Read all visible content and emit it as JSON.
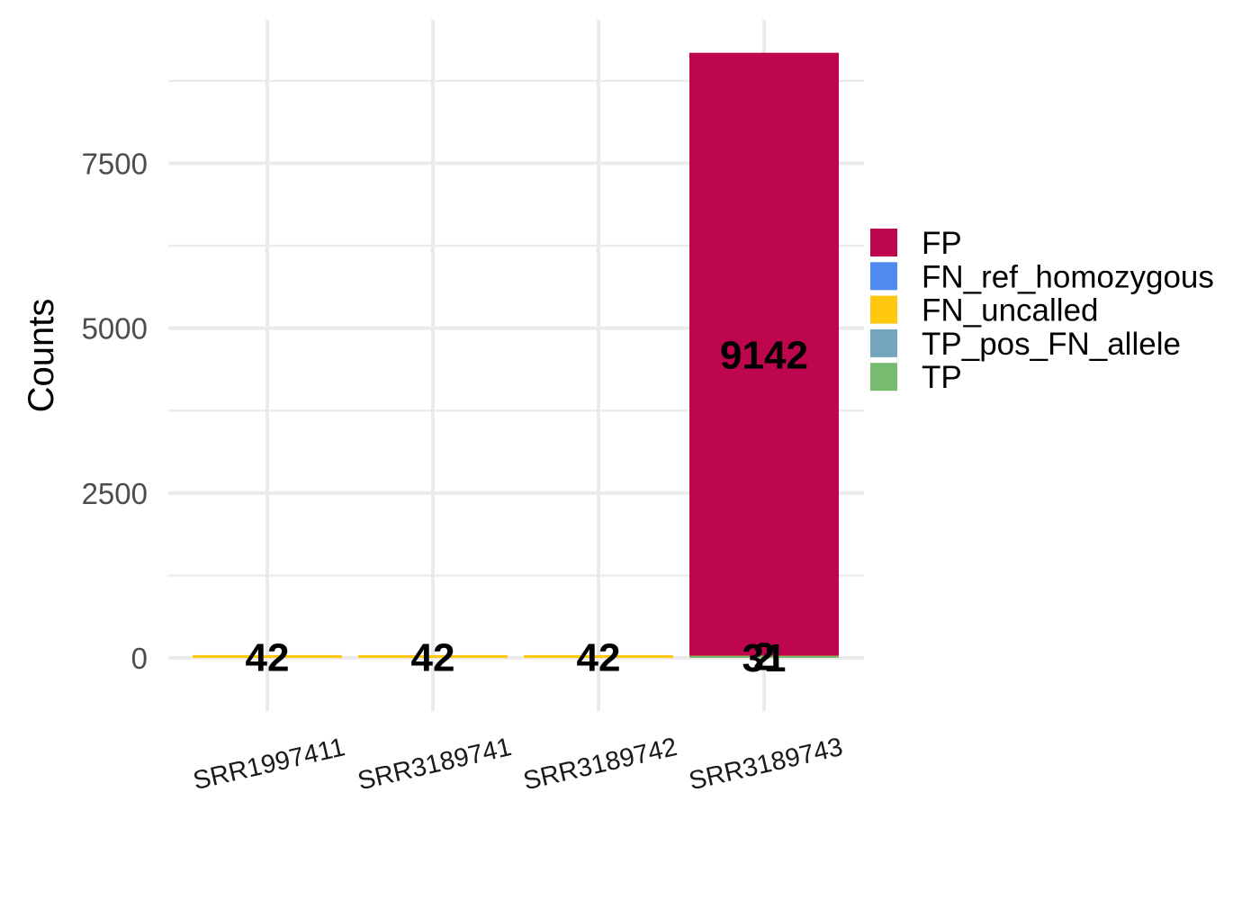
{
  "chart_data": {
    "type": "bar",
    "stacked": true,
    "title": "",
    "xlabel": "",
    "ylabel": "Counts",
    "ylim": [
      -650,
      9600
    ],
    "y_ticks": [
      0,
      2500,
      5000,
      7500
    ],
    "y_ticks_labels": [
      "0",
      "2500",
      "5000",
      "7500"
    ],
    "grid": true,
    "legend_position": "right",
    "categories": [
      "SRR1997411",
      "SRR3189741",
      "SRR3189742",
      "SRR3189743"
    ],
    "series": [
      {
        "name": "TP",
        "color": "#77BB6F",
        "values": [
          0,
          0,
          0,
          31
        ],
        "labels": [
          "",
          "",
          "",
          "31"
        ]
      },
      {
        "name": "TP_pos_FN_allele",
        "color": "#74A5BF",
        "values": [
          0,
          0,
          0,
          0
        ],
        "labels": [
          "",
          "",
          "",
          ""
        ]
      },
      {
        "name": "FN_uncalled",
        "color": "#FFC80F",
        "values": [
          42,
          42,
          42,
          2
        ],
        "labels": [
          "42",
          "42",
          "42",
          "2"
        ]
      },
      {
        "name": "FN_ref_homozygous",
        "color": "#4E8AEF",
        "values": [
          0,
          0,
          0,
          0
        ],
        "labels": [
          "",
          "",
          "",
          ""
        ]
      },
      {
        "name": "FP",
        "color": "#BE064E",
        "values": [
          0,
          0,
          0,
          9142
        ],
        "labels": [
          "",
          "",
          "",
          "9142"
        ]
      }
    ],
    "legend": [
      "FP",
      "FN_ref_homozygous",
      "FN_uncalled",
      "TP_pos_FN_allele",
      "TP"
    ]
  }
}
